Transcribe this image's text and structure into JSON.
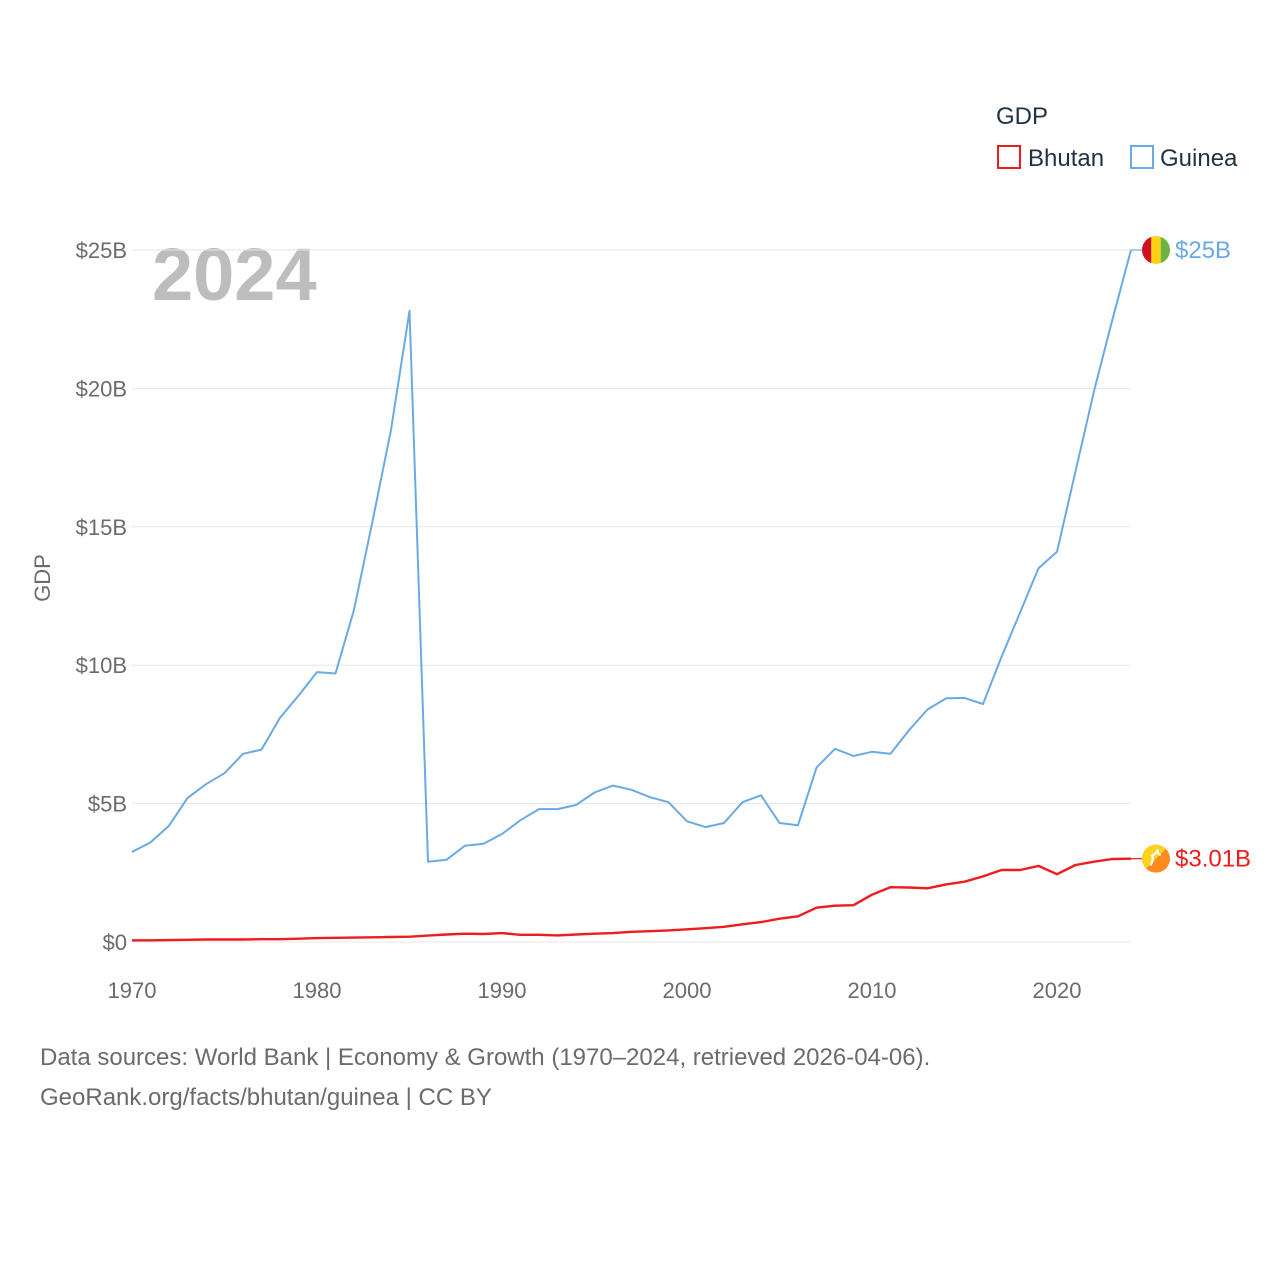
{
  "chart_data": {
    "type": "line",
    "title": "GDP",
    "ylabel": "GDP",
    "xlabel": "",
    "year_overlay": "2024",
    "xlim": [
      1970,
      2024
    ],
    "ylim": [
      0,
      25
    ],
    "x_ticks": [
      1970,
      1980,
      1990,
      2000,
      2010,
      2020
    ],
    "x_tick_labels": [
      "1970",
      "1980",
      "1990",
      "2000",
      "2010",
      "2020"
    ],
    "y_ticks": [
      0,
      5,
      10,
      15,
      20,
      25
    ],
    "y_tick_labels": [
      "$0",
      "$5B",
      "$10B",
      "$15B",
      "$20B",
      "$25B"
    ],
    "unit": "billions USD",
    "legend_position": "top-right",
    "x": [
      1970,
      1971,
      1972,
      1973,
      1974,
      1975,
      1976,
      1977,
      1978,
      1979,
      1980,
      1981,
      1982,
      1983,
      1984,
      1985,
      1986,
      1987,
      1988,
      1989,
      1990,
      1991,
      1992,
      1993,
      1994,
      1995,
      1996,
      1997,
      1998,
      1999,
      2000,
      2001,
      2002,
      2003,
      2004,
      2005,
      2006,
      2007,
      2008,
      2009,
      2010,
      2011,
      2012,
      2013,
      2014,
      2015,
      2016,
      2017,
      2018,
      2019,
      2020,
      2021,
      2022,
      2023,
      2024
    ],
    "series": [
      {
        "name": "Bhutan",
        "color": "#ee1c1c",
        "end_label": "$3.01B",
        "flag_icon": "bhutan-flag-icon",
        "values": [
          0.06,
          0.06,
          0.07,
          0.08,
          0.09,
          0.09,
          0.09,
          0.1,
          0.1,
          0.12,
          0.14,
          0.15,
          0.16,
          0.17,
          0.18,
          0.19,
          0.23,
          0.27,
          0.3,
          0.29,
          0.32,
          0.26,
          0.26,
          0.24,
          0.27,
          0.3,
          0.32,
          0.37,
          0.39,
          0.42,
          0.46,
          0.5,
          0.55,
          0.64,
          0.72,
          0.84,
          0.93,
          1.24,
          1.31,
          1.33,
          1.71,
          1.98,
          1.97,
          1.94,
          2.08,
          2.18,
          2.37,
          2.6,
          2.6,
          2.75,
          2.45,
          2.78,
          2.9,
          3.0,
          3.01
        ]
      },
      {
        "name": "Guinea",
        "color": "#6aaae4",
        "end_label": "$25B",
        "flag_icon": "guinea-flag-icon",
        "values": [
          3.25,
          3.6,
          4.2,
          5.2,
          5.7,
          6.1,
          6.8,
          6.95,
          8.1,
          8.9,
          9.75,
          9.7,
          12.0,
          15.2,
          18.5,
          22.8,
          2.9,
          2.97,
          3.48,
          3.55,
          3.9,
          4.4,
          4.8,
          4.8,
          4.95,
          5.4,
          5.65,
          5.5,
          5.23,
          5.05,
          4.36,
          4.15,
          4.3,
          5.05,
          5.3,
          4.3,
          4.22,
          6.3,
          6.98,
          6.72,
          6.87,
          6.8,
          7.65,
          8.4,
          8.8,
          8.82,
          8.6,
          10.3,
          11.9,
          13.5,
          14.1,
          17.0,
          19.9,
          22.5,
          25.0
        ]
      }
    ]
  },
  "footer": {
    "line1": "Data sources: World Bank | Economy & Growth (1970–2024, retrieved 2026-04-06).",
    "line2": "GeoRank.org/facts/bhutan/guinea | CC BY"
  }
}
